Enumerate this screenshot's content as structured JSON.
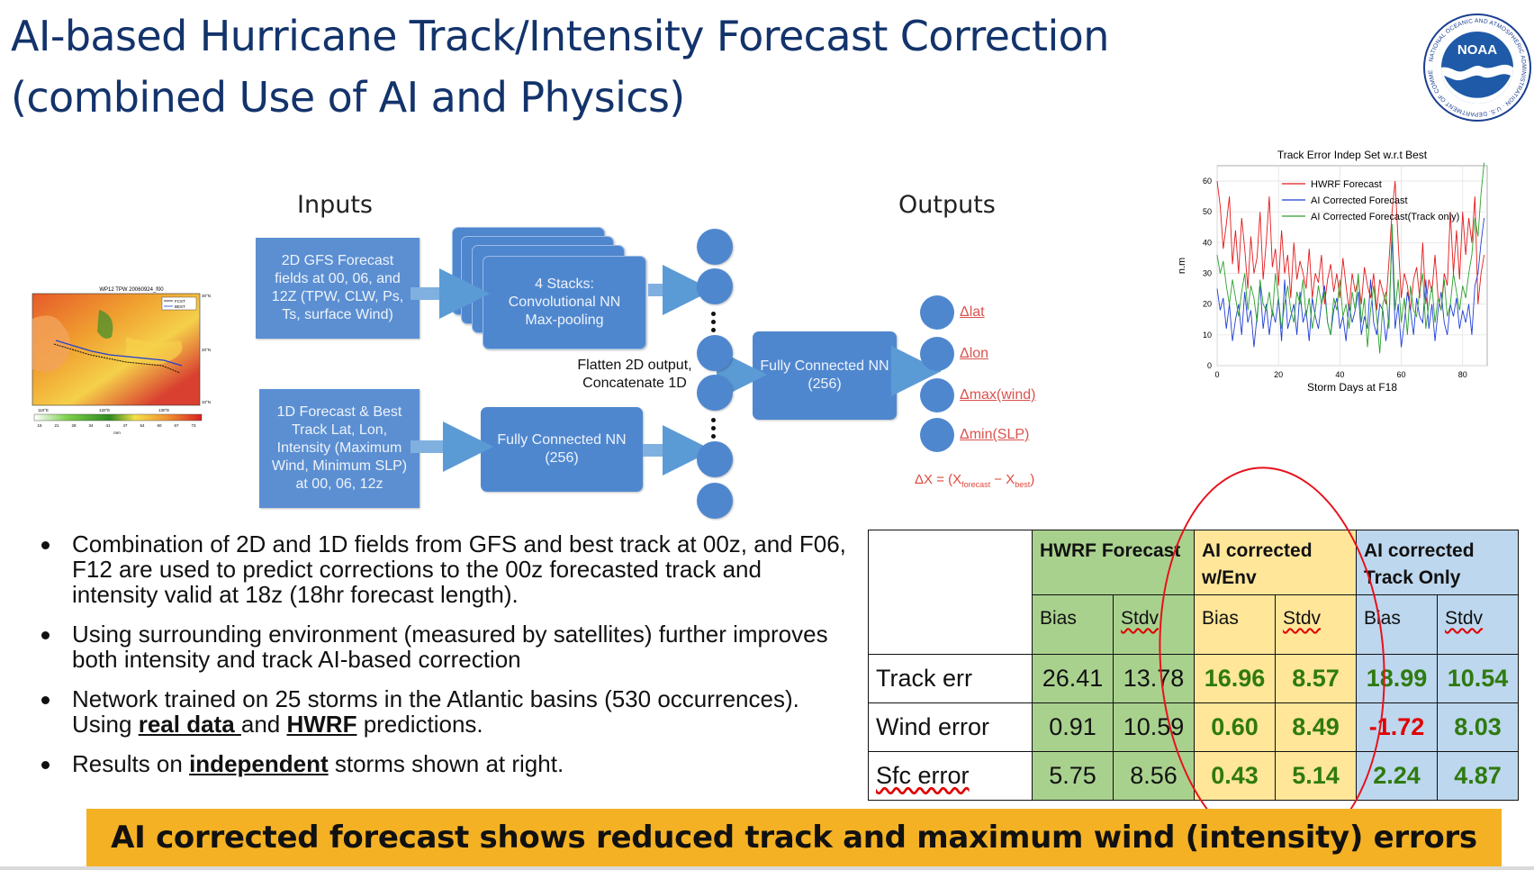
{
  "title": {
    "line1": "AI-based Hurricane Track/Intensity Forecast Correction",
    "line2": "(combined Use of AI and Physics)"
  },
  "logo": {
    "text": "NOAA",
    "ring_text": "NATIONAL OCEANIC AND ATMOSPHERIC ADMINISTRATION · U.S. DEPARTMENT OF COMMERCE"
  },
  "diagram": {
    "inputs_label": "Inputs",
    "outputs_label": "Outputs",
    "input_2d": "2D GFS Forecast fields at 00, 06, and 12Z (TPW, CLW, Ps, Ts, surface Wind)",
    "input_1d": "1D Forecast & Best Track Lat, Lon, Intensity (Maximum Wind, Minimum SLP) at 00, 06, 12z",
    "conv_box": "4 Stacks: Convolutional NN Max-pooling",
    "fc1_box": "Fully Connected NN (256)",
    "fc2_box": "Fully Connected NN (256)",
    "flatten_line1": "Flatten 2D output,",
    "flatten_line2": "Concatenate 1D",
    "outputs": [
      "Δlat",
      "Δlon",
      "Δmax(wind)",
      "Δmin(SLP)"
    ],
    "formula": {
      "prefix": "ΔX = (X",
      "sub1": "forecast",
      "mid": " − X",
      "sub2": "best",
      "suffix": ")"
    },
    "map": {
      "title": "WP12 TPW 20060924_f00",
      "legend": [
        "FCST",
        "BEST"
      ],
      "lon_ticks": [
        "110°E",
        "120°E",
        "130°E"
      ],
      "lat_ticks": [
        "30°N",
        "20°N",
        "10°N"
      ],
      "colorbar_ticks": [
        "15",
        "21",
        "28",
        "34",
        "41",
        "47",
        "54",
        "60",
        "67",
        "73"
      ],
      "colorbar_unit": "mm"
    }
  },
  "chart_data": {
    "type": "line",
    "title": "Track Error Indep Set w.r.t Best",
    "xlabel": "Storm Days at F18",
    "ylabel": "n.m",
    "xlim": [
      0,
      88
    ],
    "ylim": [
      0,
      65
    ],
    "x_ticks": [
      0,
      20,
      40,
      60,
      80
    ],
    "y_ticks": [
      0,
      10,
      20,
      30,
      40,
      50,
      60
    ],
    "grid": true,
    "legend_position": "top-right",
    "series": [
      {
        "name": "HWRF Forecast",
        "color": "#e41a1c",
        "values": [
          60,
          52,
          38,
          46,
          55,
          33,
          44,
          30,
          48,
          38,
          25,
          42,
          30,
          35,
          50,
          28,
          40,
          55,
          32,
          38,
          26,
          44,
          30,
          36,
          22,
          40,
          28,
          34,
          30,
          25,
          38,
          22,
          30,
          27,
          36,
          20,
          28,
          33,
          24,
          30,
          22,
          35,
          26,
          18,
          30,
          24,
          28,
          20,
          32,
          26,
          22,
          30,
          18,
          28,
          24,
          20,
          34,
          50,
          60,
          40,
          22,
          30,
          26,
          18,
          28,
          32,
          22,
          40,
          20,
          28,
          24,
          36,
          22,
          18,
          30,
          26,
          50,
          30,
          44,
          28,
          50,
          36,
          48,
          40,
          55,
          20,
          30,
          36
        ]
      },
      {
        "name": "AI Corrected Forecast",
        "color": "#1f3fd6",
        "values": [
          25,
          18,
          22,
          12,
          20,
          8,
          15,
          20,
          10,
          24,
          14,
          18,
          6,
          16,
          26,
          12,
          20,
          10,
          18,
          14,
          22,
          8,
          28,
          12,
          16,
          20,
          10,
          24,
          14,
          18,
          8,
          22,
          16,
          12,
          20,
          26,
          14,
          10,
          18,
          22,
          12,
          16,
          8,
          20,
          14,
          18,
          24,
          10,
          16,
          12,
          28,
          14,
          10,
          20,
          18,
          8,
          16,
          42,
          12,
          20,
          6,
          14,
          24,
          18,
          10,
          22,
          16,
          14,
          28,
          12,
          20,
          8,
          18,
          24,
          14,
          10,
          20,
          16,
          22,
          12,
          18,
          14,
          20,
          10,
          26,
          30,
          40,
          48
        ]
      },
      {
        "name": "AI Corrected Forecast(Track only)",
        "color": "#2ca02c",
        "values": [
          36,
          30,
          34,
          26,
          20,
          28,
          22,
          16,
          24,
          30,
          18,
          26,
          22,
          14,
          28,
          20,
          18,
          24,
          16,
          30,
          22,
          12,
          20,
          26,
          18,
          14,
          24,
          20,
          28,
          16,
          22,
          12,
          18,
          26,
          20,
          24,
          14,
          10,
          22,
          18,
          28,
          16,
          20,
          12,
          24,
          18,
          30,
          14,
          22,
          6,
          18,
          26,
          16,
          4,
          20,
          24,
          12,
          46,
          18,
          28,
          14,
          22,
          10,
          26,
          18,
          16,
          24,
          30,
          12,
          20,
          26,
          14,
          22,
          18,
          28,
          16,
          20,
          30,
          24,
          18,
          26,
          22,
          30,
          36,
          48,
          42,
          56,
          66
        ]
      }
    ]
  },
  "bullets": [
    {
      "text": "Combination of 2D and 1D fields from GFS and best track at 00z, and F06, F12 are used to predict corrections to the 00z forecasted track and intensity valid at 18z (18hr forecast length)."
    },
    {
      "text": "Using surrounding environment (measured by satellites) further improves both intensity and track AI-based correction"
    },
    {
      "pre": "Network trained on 25 storms in the Atlantic basins (530 occurrences). Using ",
      "u1": "real data ",
      "mid": "and ",
      "u2": "HWRF",
      "post": " predictions."
    },
    {
      "pre": "Results on ",
      "u1": "independent",
      "post": " storms shown at right."
    }
  ],
  "table": {
    "groups": [
      "HWRF Forecast",
      "AI corrected w/Env",
      "AI corrected Track Only"
    ],
    "sub": [
      "Bias",
      "Stdv"
    ],
    "rows": [
      {
        "label": "Track err",
        "values": [
          "26.41",
          "13.78",
          "16.96",
          "8.57",
          "18.99",
          "10.54"
        ]
      },
      {
        "label": "Wind error",
        "values": [
          "0.91",
          "10.59",
          "0.60",
          "8.49",
          "-1.72",
          "8.03"
        ]
      },
      {
        "label": "Sfc error",
        "values": [
          "5.75",
          "8.56",
          "0.43",
          "5.14",
          "2.24",
          "4.87"
        ]
      }
    ]
  },
  "banner": "AI corrected forecast shows reduced track and maximum wind (intensity) errors"
}
